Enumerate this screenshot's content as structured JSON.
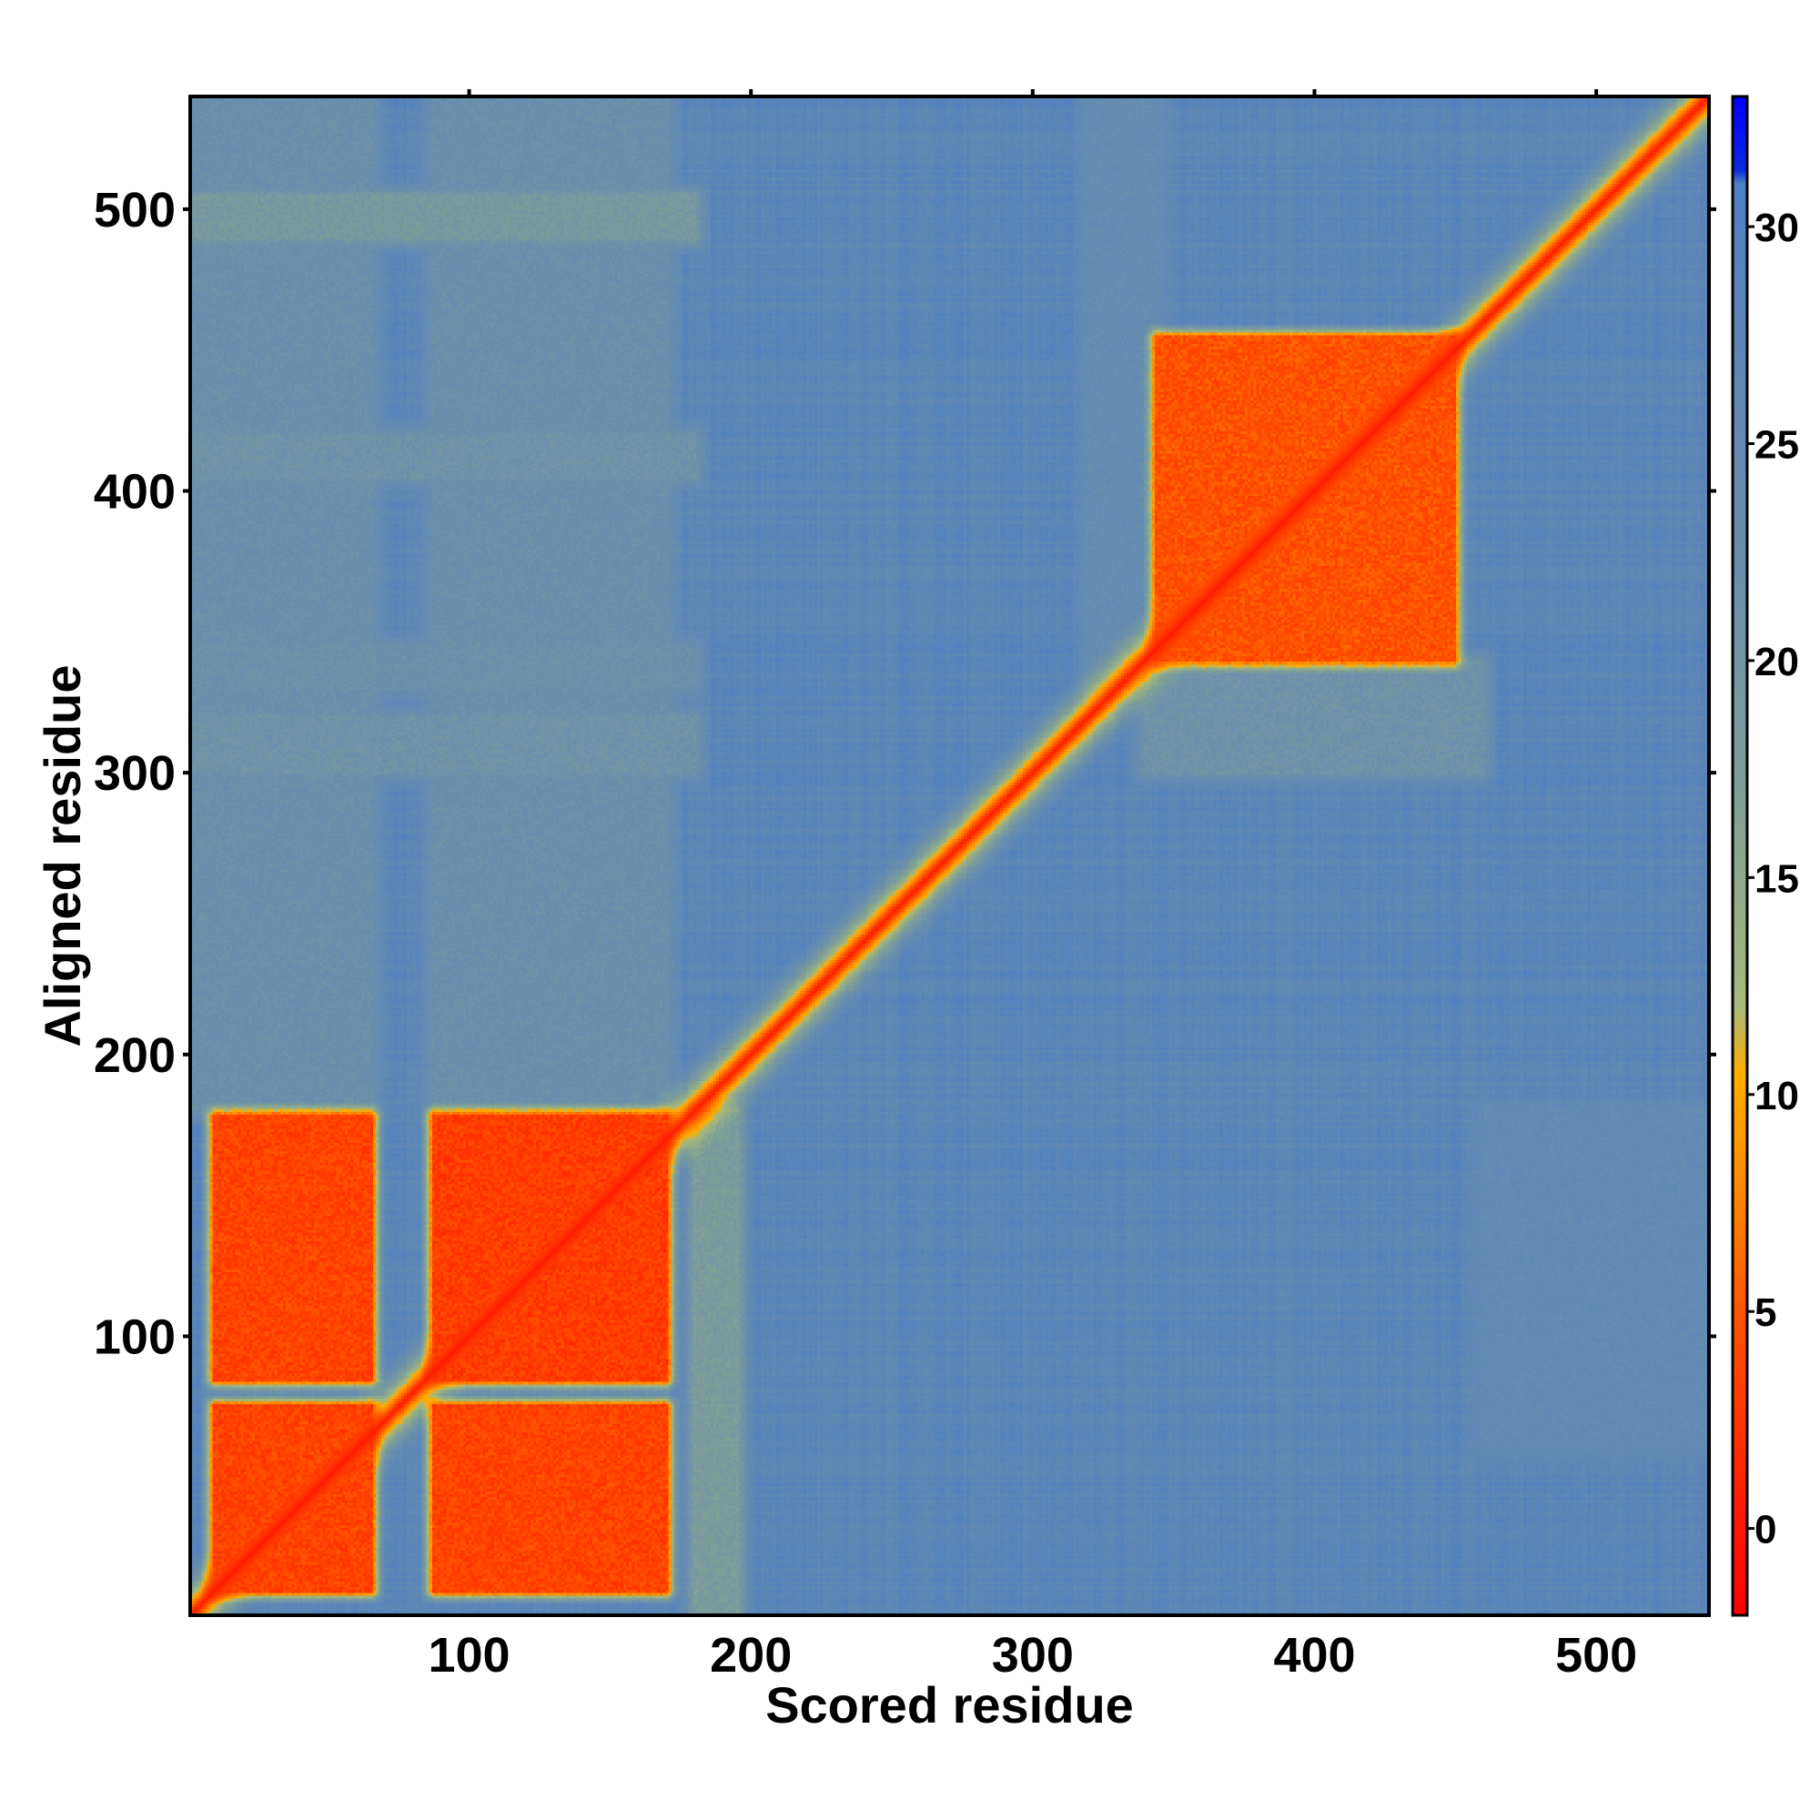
{
  "chart_data": {
    "type": "heatmap",
    "title": "",
    "xlabel": "Scored residue",
    "ylabel": "Aligned residue",
    "n_residues": 540,
    "xlim": [
      1,
      540
    ],
    "ylim": [
      1,
      540
    ],
    "x_ticks": [
      100,
      200,
      300,
      400,
      500
    ],
    "y_ticks": [
      100,
      200,
      300,
      400,
      500
    ],
    "colorbar": {
      "range": [
        -2,
        33
      ],
      "ticks": [
        0,
        5,
        10,
        15,
        20,
        25,
        30
      ],
      "stops": [
        {
          "value": -2,
          "color": "#ff0000"
        },
        {
          "value": 1,
          "color": "#ff2200"
        },
        {
          "value": 5,
          "color": "#ff5500"
        },
        {
          "value": 8,
          "color": "#ff8c00"
        },
        {
          "value": 10.5,
          "color": "#ffae00"
        },
        {
          "value": 12,
          "color": "#a7b979"
        },
        {
          "value": 17,
          "color": "#7e9f97"
        },
        {
          "value": 22,
          "color": "#6a8fad"
        },
        {
          "value": 28,
          "color": "#5b85b8"
        },
        {
          "value": 31,
          "color": "#4d7fc6"
        },
        {
          "value": 31.3,
          "color": "#0a2ae0"
        },
        {
          "value": 33,
          "color": "#0000ff"
        }
      ]
    },
    "background_value": 27.5,
    "diagonal": {
      "center_value": 0.5,
      "band_width": 9
    },
    "high_confidence_blocks": [
      {
        "x": [
          9,
          65
        ],
        "y": [
          9,
          75
        ],
        "value": 3
      },
      {
        "x": [
          9,
          65
        ],
        "y": [
          84,
          178
        ],
        "value": 3
      },
      {
        "x": [
          87,
          170
        ],
        "y": [
          9,
          75
        ],
        "value": 3
      },
      {
        "x": [
          87,
          170
        ],
        "y": [
          84,
          178
        ],
        "value": 2.5
      },
      {
        "x": [
          344,
          450
        ],
        "y": [
          340,
          455
        ],
        "value": 4
      }
    ],
    "intermediate_bands": [
      {
        "x": [
          1,
          180
        ],
        "y": [
          490,
          505
        ],
        "value": 19
      },
      {
        "x": [
          1,
          180
        ],
        "y": [
          300,
          320
        ],
        "value": 21
      },
      {
        "x": [
          1,
          180
        ],
        "y": [
          405,
          420
        ],
        "value": 21
      },
      {
        "x": [
          1,
          180
        ],
        "y": [
          330,
          345
        ],
        "value": 22
      },
      {
        "x": [
          1,
          65
        ],
        "y": [
          180,
          540
        ],
        "value": 22
      },
      {
        "x": [
          87,
          170
        ],
        "y": [
          180,
          540
        ],
        "value": 22
      },
      {
        "x": [
          180,
          195
        ],
        "y": [
          1,
          180
        ],
        "value": 18
      },
      {
        "x": [
          340,
          460
        ],
        "y": [
          300,
          340
        ],
        "value": 21
      },
      {
        "x": [
          320,
          345
        ],
        "y": [
          330,
          540
        ],
        "value": 24
      },
      {
        "x": [
          460,
          540
        ],
        "y": [
          60,
          180
        ],
        "value": 25
      }
    ]
  }
}
